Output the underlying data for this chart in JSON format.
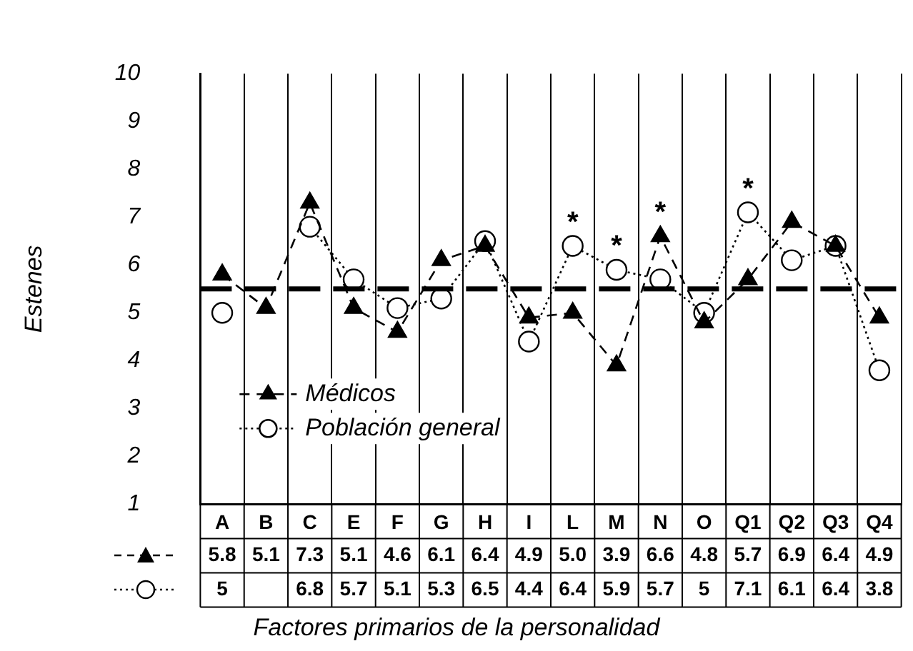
{
  "chart_data": {
    "type": "line",
    "ylabel": "Estenes",
    "xlabel": "Factores primarios de la personalidad",
    "categories": [
      "A",
      "B",
      "C",
      "E",
      "F",
      "G",
      "H",
      "I",
      "L",
      "M",
      "N",
      "O",
      "Q1",
      "Q2",
      "Q3",
      "Q4"
    ],
    "series": [
      {
        "name": "Médicos",
        "color": "#000000",
        "marker": "triangle",
        "line_style": "dashed",
        "values": [
          5.8,
          5.1,
          7.3,
          5.1,
          4.6,
          6.1,
          6.4,
          4.9,
          5.0,
          3.9,
          6.6,
          4.8,
          5.7,
          6.9,
          6.4,
          4.9
        ],
        "value_labels": [
          "5.8",
          "5.1",
          "7.3",
          "5.1",
          "4.6",
          "6.1",
          "6.4",
          "4.9",
          "5.0",
          "3.9",
          "6.6",
          "4.8",
          "5.7",
          "6.9",
          "6.4",
          "4.9"
        ]
      },
      {
        "name": "Población general",
        "color": "#000000",
        "marker": "circle",
        "line_style": "dotted",
        "values": [
          5,
          null,
          6.8,
          5.7,
          5.1,
          5.3,
          6.5,
          4.4,
          6.4,
          5.9,
          5.7,
          5,
          7.1,
          6.1,
          6.4,
          3.8
        ],
        "value_labels": [
          "5",
          null,
          "6.8",
          "5.7",
          "5.1",
          "5.3",
          "6.5",
          "4.4",
          "6.4",
          "5.9",
          "5.7",
          "5",
          "7.1",
          "6.1",
          "6.4",
          "3.8"
        ]
      }
    ],
    "ylim": [
      1,
      10
    ],
    "yticks": [
      1,
      2,
      3,
      4,
      5,
      6,
      7,
      8,
      9,
      10
    ],
    "grid": "x",
    "legend": "bottom left",
    "ref_lines": [
      {
        "axis": "y",
        "value": 5.5,
        "line_style": "dashed",
        "color": "#000000"
      }
    ],
    "annotations": [
      {
        "text": "*",
        "x": "L",
        "y": 6.4
      },
      {
        "text": "*",
        "x": "M",
        "y": 5.9
      },
      {
        "text": "*",
        "x": "N",
        "y": 6.6
      },
      {
        "text": "*",
        "x": "Q1",
        "y": 7.1
      }
    ]
  }
}
